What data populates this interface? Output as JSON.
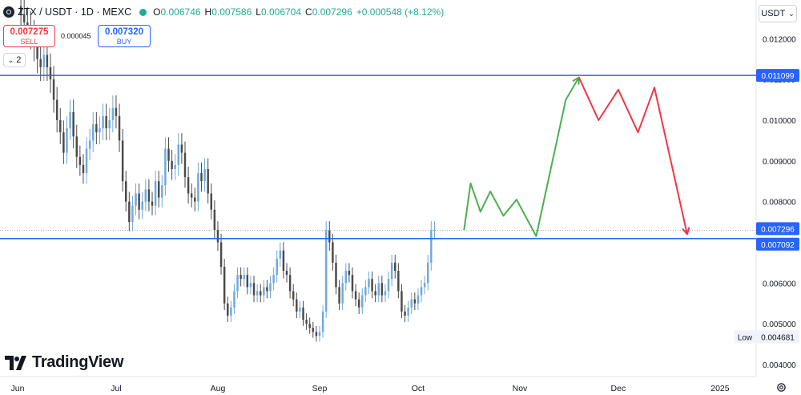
{
  "header": {
    "symbol": "ZTX / USDT · 1D · MEXC",
    "open_label": "O",
    "open": "0.006746",
    "high_label": "H",
    "high": "0.007586",
    "low_label": "L",
    "low": "0.006704",
    "close_label": "C",
    "close": "0.007296",
    "change": "+0.000548 (+8.12%)",
    "status_color": "#22ab94"
  },
  "trade": {
    "sell_price": "0.007275",
    "sell_label": "SELL",
    "spread": "0.000045",
    "buy_price": "0.007320",
    "buy_label": "BUY"
  },
  "indicators_toggle": {
    "count": "2"
  },
  "currency_button": {
    "label": "USDT"
  },
  "watermark": {
    "text": "TradingView"
  },
  "chart_data": {
    "type": "candlestick",
    "x_tick_labels": [
      "Jun",
      "Jul",
      "Aug",
      "Sep",
      "Oct",
      "Nov",
      "Dec",
      "2025"
    ],
    "x_tick_dates": [
      "2024-06-01",
      "2024-07-01",
      "2024-08-01",
      "2024-09-01",
      "2024-10-01",
      "2024-11-01",
      "2024-12-01",
      "2025-01-01"
    ],
    "y_ticks": [
      0.004,
      0.005,
      0.006,
      0.007,
      0.008,
      0.009,
      0.01,
      0.011,
      0.012
    ],
    "y_tick_labels": [
      "0.004000",
      "0.005000",
      "0.006000",
      "0.007000",
      "0.008000",
      "0.009000",
      "0.010000",
      "0.011000",
      "0.012000"
    ],
    "ylim": [
      0.0039,
      0.0124
    ],
    "xlim": [
      "2024-06-01",
      "2025-01-12"
    ],
    "price_labels": {
      "resistance": "0.011099",
      "last": "0.007296",
      "support": "0.007092",
      "low_label": "Low",
      "low": "0.004681"
    },
    "resistance_level": 0.011099,
    "support_level": 0.007092,
    "last_price": 0.007296,
    "candle_series": {
      "start_date": "2024-06-01",
      "close": [
        0.0128,
        0.0126,
        0.0124,
        0.0123,
        0.0121,
        0.0118,
        0.0115,
        0.0113,
        0.0116,
        0.0113,
        0.011,
        0.0105,
        0.01,
        0.0097,
        0.0092,
        0.0098,
        0.0102,
        0.0096,
        0.0091,
        0.0089,
        0.0087,
        0.0093,
        0.0095,
        0.0099,
        0.0097,
        0.0098,
        0.0101,
        0.0098,
        0.01,
        0.0103,
        0.0101,
        0.0095,
        0.0085,
        0.008,
        0.0075,
        0.0079,
        0.0082,
        0.0078,
        0.008,
        0.0083,
        0.008,
        0.0079,
        0.0085,
        0.0081,
        0.0084,
        0.0093,
        0.009,
        0.0088,
        0.0089,
        0.0094,
        0.0092,
        0.0086,
        0.0082,
        0.0081,
        0.008,
        0.0087,
        0.0085,
        0.0088,
        0.0082,
        0.0078,
        0.0073,
        0.007,
        0.0064,
        0.0055,
        0.0052,
        0.0054,
        0.0058,
        0.0062,
        0.0061,
        0.0062,
        0.0059,
        0.006,
        0.0057,
        0.0058,
        0.0057,
        0.0059,
        0.0058,
        0.006,
        0.0062,
        0.0066,
        0.0068,
        0.0063,
        0.0062,
        0.0058,
        0.0056,
        0.0053,
        0.0054,
        0.0051,
        0.005,
        0.0049,
        0.0048,
        0.0047,
        0.0048,
        0.0053,
        0.0073,
        0.007,
        0.0065,
        0.0059,
        0.0055,
        0.006,
        0.0063,
        0.0062,
        0.0058,
        0.0056,
        0.0054,
        0.0057,
        0.0059,
        0.0061,
        0.0058,
        0.0057,
        0.006,
        0.0057,
        0.0058,
        0.0061,
        0.0065,
        0.0063,
        0.0058,
        0.0053,
        0.0052,
        0.0054,
        0.0056,
        0.0055,
        0.0057,
        0.0059,
        0.006,
        0.0065,
        0.0073,
        0.0073
      ]
    },
    "forecast_bullish": [
      {
        "date": "2024-10-15",
        "price": 0.0073
      },
      {
        "date": "2024-10-17",
        "price": 0.00845
      },
      {
        "date": "2024-10-20",
        "price": 0.00775
      },
      {
        "date": "2024-10-23",
        "price": 0.00825
      },
      {
        "date": "2024-10-27",
        "price": 0.00765
      },
      {
        "date": "2024-10-31",
        "price": 0.00805
      },
      {
        "date": "2024-11-06",
        "price": 0.00715
      },
      {
        "date": "2024-11-15",
        "price": 0.0105
      },
      {
        "date": "2024-11-19",
        "price": 0.01105
      }
    ],
    "forecast_bearish": [
      {
        "date": "2024-11-19",
        "price": 0.01105
      },
      {
        "date": "2024-11-25",
        "price": 0.01
      },
      {
        "date": "2024-12-01",
        "price": 0.01075
      },
      {
        "date": "2024-12-07",
        "price": 0.0097
      },
      {
        "date": "2024-12-12",
        "price": 0.0108
      },
      {
        "date": "2024-12-22",
        "price": 0.0072
      }
    ],
    "colors": {
      "candle": "#4a4a4a",
      "bull_candle": "#6fa8dc",
      "support_resistance": "#2962ff",
      "bullish_path": "#4caf50",
      "bearish_path": "#f23645",
      "grid": "#f0f3fa"
    }
  }
}
